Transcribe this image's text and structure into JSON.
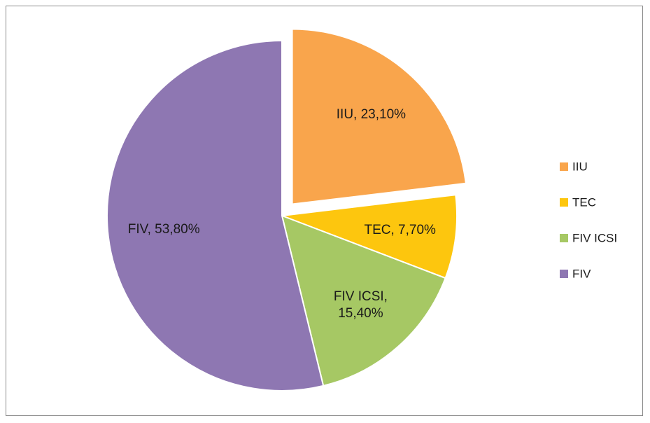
{
  "chart_data": {
    "type": "pie",
    "categories": [
      "IIU",
      "TEC",
      "FIV ICSI",
      "FIV"
    ],
    "values": [
      23.1,
      7.7,
      15.4,
      53.8
    ],
    "value_labels": [
      "IIU, 23,10%",
      "TEC, 7,70%",
      "FIV ICSI, 15,40%",
      "FIV, 53,80%"
    ],
    "colors": [
      "#f9a54c",
      "#fdc60e",
      "#a6c864",
      "#8e77b2"
    ],
    "exploded": [
      true,
      false,
      false,
      false
    ],
    "legend": "right"
  }
}
